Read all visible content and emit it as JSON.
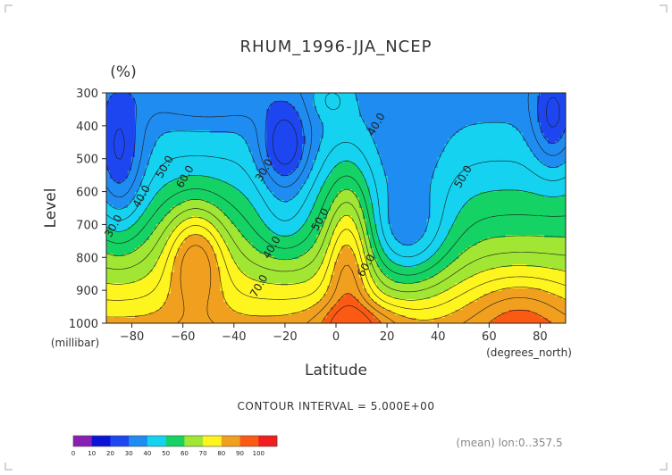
{
  "chart_data": {
    "type": "contour",
    "title": "RHUM_1996-JJA_NCEP",
    "units": "(%)",
    "xlabel": "Latitude",
    "ylabel": "Level",
    "x_units": "(degrees_north)",
    "y_units": "(millibar)",
    "xlim": [
      -90,
      90
    ],
    "ylim": [
      1000,
      300
    ],
    "x_ticks": [
      "-80",
      "-60",
      "-40",
      "-20",
      "0",
      "20",
      "40",
      "60",
      "80"
    ],
    "y_ticks": [
      "300",
      "400",
      "500",
      "600",
      "700",
      "800",
      "900",
      "1000"
    ],
    "contour_interval_text": "CONTOUR INTERVAL = 5.000E+00",
    "footnote": "(mean) lon:0..357.5",
    "contour_labels": [
      {
        "text": "30.0",
        "x": -86,
        "y": 710
      },
      {
        "text": "40.0",
        "x": -75,
        "y": 620
      },
      {
        "text": "50.0",
        "x": -66,
        "y": 530
      },
      {
        "text": "60.0",
        "x": -58,
        "y": 560
      },
      {
        "text": "30.0",
        "x": -27,
        "y": 540
      },
      {
        "text": "40.0",
        "x": -24,
        "y": 775
      },
      {
        "text": "50.0",
        "x": -5,
        "y": 690
      },
      {
        "text": "70.0",
        "x": -29,
        "y": 892
      },
      {
        "text": "60.0",
        "x": 13,
        "y": 830
      },
      {
        "text": "40.0",
        "x": 17,
        "y": 400
      },
      {
        "text": "50.0",
        "x": 51,
        "y": 560
      }
    ],
    "colorbar": {
      "levels": [
        0,
        10,
        20,
        30,
        40,
        50,
        60,
        70,
        80,
        90,
        100
      ],
      "labels": [
        "0",
        "10",
        "20",
        "30",
        "40",
        "50",
        "60",
        "70",
        "80",
        "90",
        "100"
      ],
      "colors": [
        "#8a1fb4",
        "#0a14d8",
        "#1e46f0",
        "#1e8cf0",
        "#14d2f0",
        "#14d264",
        "#a0e632",
        "#fff51e",
        "#f0a01e",
        "#fa5a14",
        "#f01e1e"
      ]
    },
    "grid": false
  }
}
